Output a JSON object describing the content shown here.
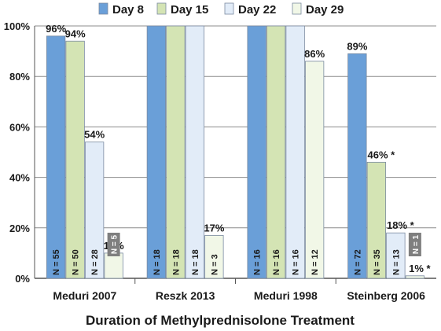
{
  "chart_data": {
    "type": "bar",
    "title": "",
    "xlabel": "Duration of Methylprednisolone Treatment",
    "ylabel": "",
    "ylim": [
      0,
      100
    ],
    "yticks": [
      "0%",
      "20%",
      "40%",
      "60%",
      "80%",
      "100%"
    ],
    "categories": [
      "Meduri 2007",
      "Reszk 2013",
      "Meduri 1998",
      "Steinberg 2006"
    ],
    "legend_position": "top",
    "grid": "horizontal",
    "series": [
      {
        "name": "Day 8",
        "color": "#6a9fd8",
        "values": [
          96,
          100,
          100,
          89
        ],
        "labels": [
          "96%",
          "",
          "",
          "89%"
        ],
        "n_labels": [
          "N = 55",
          "N = 18",
          "N = 16",
          "N = 72"
        ]
      },
      {
        "name": "Day 15",
        "color": "#d4e4b4",
        "values": [
          94,
          100,
          100,
          46
        ],
        "labels": [
          "94%",
          "",
          "",
          "46% *"
        ],
        "n_labels": [
          "N = 50",
          "N = 18",
          "N = 16",
          "N = 35"
        ]
      },
      {
        "name": "Day 22",
        "color": "#e2ecf8",
        "values": [
          54,
          100,
          100,
          18
        ],
        "labels": [
          "54%",
          "",
          "",
          "18% *"
        ],
        "n_labels": [
          "N = 28",
          "N = 18",
          "N = 16",
          "N = 13"
        ]
      },
      {
        "name": "Day 29",
        "color": "#f1f7e7",
        "values": [
          10,
          17,
          86,
          1
        ],
        "labels": [
          "10%",
          "17%",
          "86%",
          "1% *"
        ],
        "n_labels": [
          "N = 5",
          "N = 3",
          "N = 12",
          "N = 1"
        ]
      }
    ]
  }
}
